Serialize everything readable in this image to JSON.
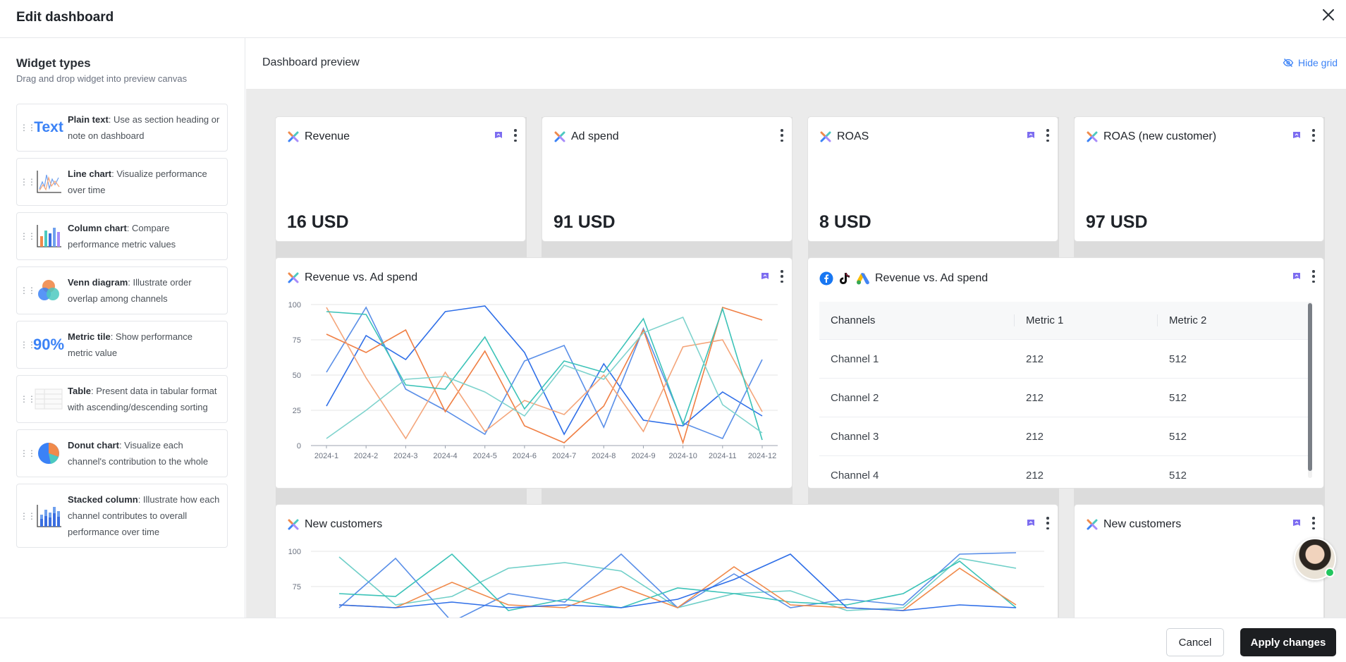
{
  "header": {
    "title": "Edit dashboard"
  },
  "sidebar": {
    "title": "Widget types",
    "subtitle": "Drag and drop widget into preview canvas",
    "items": [
      {
        "name": "Plain text",
        "desc": ": Use as section heading or note on dashboard",
        "icon": "text-icon",
        "icon_text": "Text"
      },
      {
        "name": "Line chart",
        "desc": ": Visualize performance over time",
        "icon": "line-chart-icon"
      },
      {
        "name": "Column chart",
        "desc": ": Compare performance metric values",
        "icon": "column-chart-icon"
      },
      {
        "name": "Venn diagram",
        "desc": ": Illustrate order overlap among channels",
        "icon": "venn-diagram-icon"
      },
      {
        "name": "Metric tile",
        "desc": ": Show performance metric value",
        "icon": "metric-tile-icon",
        "icon_text": "90%"
      },
      {
        "name": "Table",
        "desc": ": Present data in tabular format with ascending/descending sorting",
        "icon": "table-icon"
      },
      {
        "name": "Donut chart",
        "desc": ": Visualize each channel's contribution to the whole",
        "icon": "donut-chart-icon"
      },
      {
        "name": "Stacked column",
        "desc": ": Illustrate how each channel contributes to overall performance over time",
        "icon": "stacked-column-icon"
      }
    ]
  },
  "preview": {
    "title": "Dashboard preview",
    "hide_grid": "Hide grid"
  },
  "metrics": [
    {
      "title": "Revenue",
      "value": "16 USD"
    },
    {
      "title": "Ad spend",
      "value": "91 USD"
    },
    {
      "title": "ROAS",
      "value": "8 USD"
    },
    {
      "title": "ROAS (new customer)",
      "value": "97 USD"
    }
  ],
  "line_card": {
    "title": "Revenue vs. Ad spend"
  },
  "table_card": {
    "title": "Revenue vs. Ad spend",
    "columns": [
      "Channels",
      "Metric 1",
      "Metric 2"
    ],
    "rows": [
      [
        "Channel 1",
        "212",
        "512"
      ],
      [
        "Channel 2",
        "212",
        "512"
      ],
      [
        "Channel 3",
        "212",
        "512"
      ],
      [
        "Channel 4",
        "212",
        "512"
      ]
    ]
  },
  "new_customers_card": {
    "title": "New customers"
  },
  "new_customers_small": {
    "title": "New customers"
  },
  "footer": {
    "cancel": "Cancel",
    "apply": "Apply changes"
  },
  "colors": {
    "accent": "#3b82f6",
    "orange": "#f08a4b",
    "teal": "#4cc9c0",
    "blue": "#3b6fe0",
    "light_blue": "#6fa0ee"
  },
  "chart_data": [
    {
      "type": "line",
      "categories": [
        "2024-1",
        "2024-2",
        "2024-3",
        "2024-4",
        "2024-5",
        "2024-6",
        "2024-7",
        "2024-8",
        "2024-9",
        "2024-10",
        "2024-11",
        "2024-12"
      ],
      "ylim": [
        0,
        100
      ],
      "yticks": [
        0,
        25,
        50,
        75,
        100
      ],
      "series": [
        {
          "color": "#2f6fe8",
          "values": [
            28,
            78,
            61,
            95,
            99,
            66,
            8,
            58,
            18,
            14,
            38,
            21
          ]
        },
        {
          "color": "#5a8fe8",
          "values": [
            52,
            98,
            40,
            25,
            8,
            60,
            71,
            13,
            83,
            16,
            5,
            61
          ]
        },
        {
          "color": "#f07f44",
          "values": [
            79,
            66,
            82,
            24,
            67,
            14,
            2,
            28,
            82,
            2,
            98,
            89
          ]
        },
        {
          "color": "#f4a57a",
          "values": [
            98,
            48,
            5,
            52,
            10,
            32,
            22,
            50,
            10,
            70,
            75,
            24
          ]
        },
        {
          "color": "#3cc3b8",
          "values": [
            95,
            93,
            43,
            40,
            77,
            26,
            60,
            52,
            90,
            15,
            97,
            4
          ]
        },
        {
          "color": "#7fd3cd",
          "values": [
            5,
            25,
            47,
            49,
            38,
            21,
            57,
            47,
            80,
            91,
            29,
            9
          ]
        }
      ]
    },
    {
      "type": "line",
      "ylim": [
        0,
        100
      ],
      "yticks": [
        100,
        75
      ],
      "series": [
        {
          "color": "#6fcfc8",
          "values": [
            96,
            62,
            68,
            88,
            92,
            86,
            60,
            70,
            72,
            58,
            60,
            95,
            88
          ]
        },
        {
          "color": "#5a8fe8",
          "values": [
            60,
            95,
            50,
            70,
            64,
            98,
            60,
            84,
            60,
            66,
            62,
            98,
            99
          ]
        },
        {
          "color": "#3cc3b8",
          "values": [
            70,
            68,
            98,
            58,
            66,
            60,
            74,
            70,
            64,
            62,
            70,
            93,
            60
          ]
        },
        {
          "color": "#f08a4b",
          "values": [
            62,
            60,
            78,
            62,
            60,
            75,
            60,
            89,
            62,
            60,
            58,
            88,
            62
          ]
        },
        {
          "color": "#2f6fe8",
          "values": [
            62,
            60,
            64,
            60,
            62,
            60,
            66,
            80,
            98,
            60,
            58,
            62,
            60
          ]
        }
      ]
    }
  ]
}
